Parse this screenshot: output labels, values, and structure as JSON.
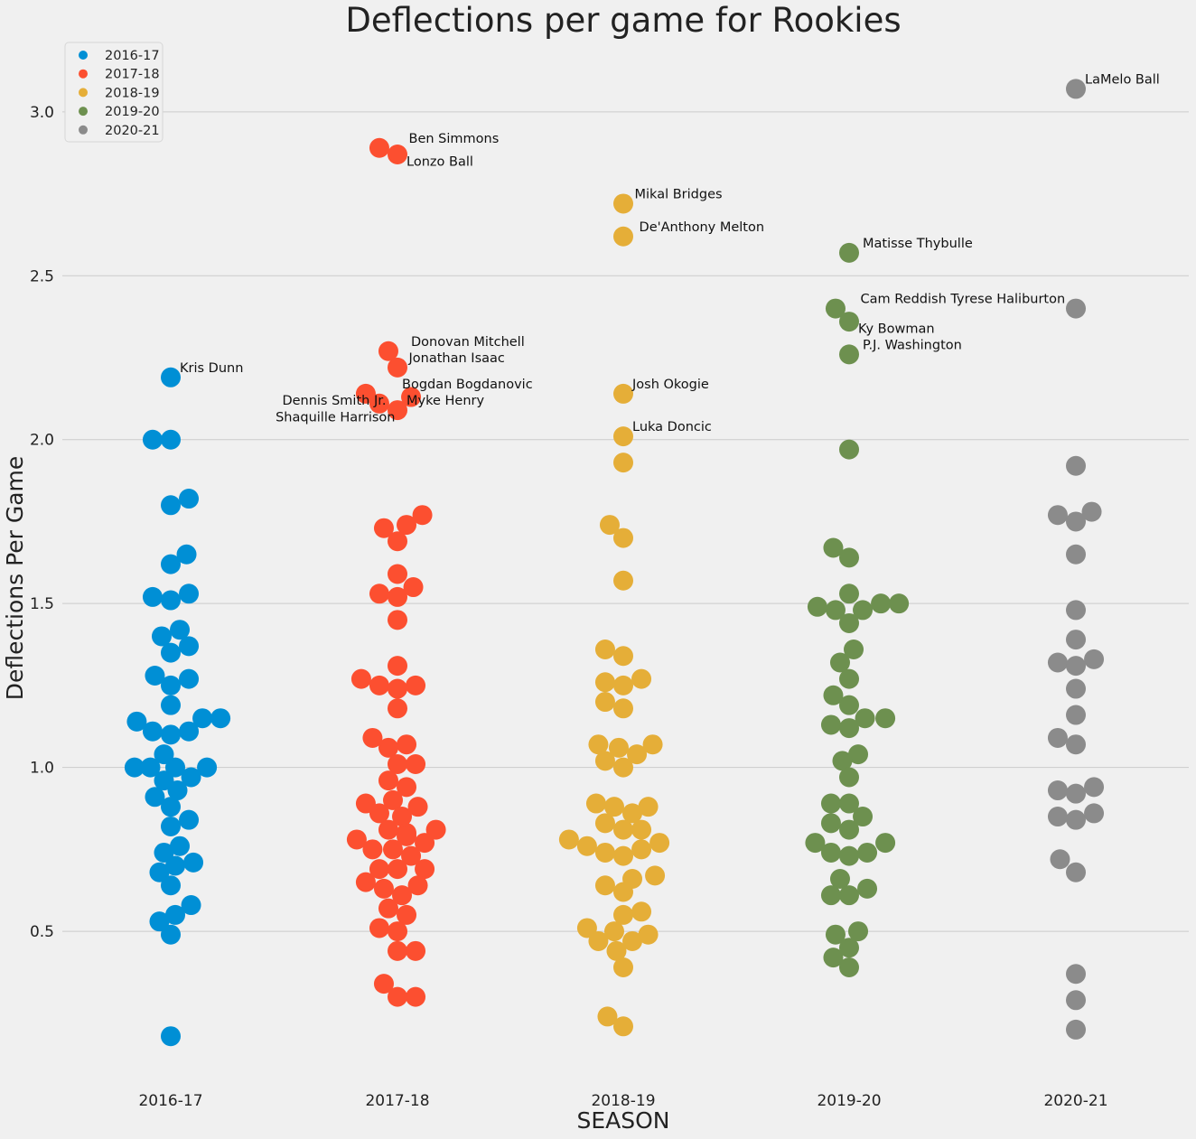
{
  "chart_data": {
    "type": "scatter",
    "title": "Deflections per game for Rookies",
    "xlabel": "SEASON",
    "ylabel": "Deflections Per Game",
    "ylim": [
      0.04,
      3.22
    ],
    "yticks": [
      0.5,
      1.0,
      1.5,
      2.0,
      2.5,
      3.0
    ],
    "ytick_labels": [
      "0.5",
      "1.0",
      "1.5",
      "2.0",
      "2.5",
      "3.0"
    ],
    "grid": "horizontal",
    "legend_position": "top-left",
    "categories": [
      "2016-17",
      "2017-18",
      "2018-19",
      "2019-20",
      "2020-21"
    ],
    "series": [
      {
        "name": "2016-17",
        "color": "#008fd5",
        "points": [
          {
            "x": -0.16,
            "y": 1.0
          },
          {
            "x": -0.09,
            "y": 1.0
          },
          {
            "x": 0.02,
            "y": 1.0
          },
          {
            "x": 0.16,
            "y": 1.0
          },
          {
            "x": -0.03,
            "y": 1.04
          },
          {
            "x": -0.03,
            "y": 0.96
          },
          {
            "x": 0.09,
            "y": 0.97
          },
          {
            "x": -0.07,
            "y": 0.91
          },
          {
            "x": 0.03,
            "y": 0.93
          },
          {
            "x": 0.0,
            "y": 0.88
          },
          {
            "x": 0.0,
            "y": 0.82
          },
          {
            "x": 0.08,
            "y": 0.84
          },
          {
            "x": -0.03,
            "y": 0.74
          },
          {
            "x": 0.04,
            "y": 0.76
          },
          {
            "x": -0.05,
            "y": 0.68
          },
          {
            "x": 0.02,
            "y": 0.7
          },
          {
            "x": 0.1,
            "y": 0.71
          },
          {
            "x": 0.0,
            "y": 0.64
          },
          {
            "x": -0.05,
            "y": 0.53
          },
          {
            "x": 0.02,
            "y": 0.55
          },
          {
            "x": 0.09,
            "y": 0.58
          },
          {
            "x": 0.0,
            "y": 0.49
          },
          {
            "x": 0.0,
            "y": 0.18
          },
          {
            "x": -0.15,
            "y": 1.14
          },
          {
            "x": -0.08,
            "y": 1.11
          },
          {
            "x": 0.0,
            "y": 1.1
          },
          {
            "x": 0.08,
            "y": 1.11
          },
          {
            "x": 0.14,
            "y": 1.15
          },
          {
            "x": 0.22,
            "y": 1.15
          },
          {
            "x": 0.0,
            "y": 1.19
          },
          {
            "x": -0.07,
            "y": 1.28
          },
          {
            "x": 0.0,
            "y": 1.25
          },
          {
            "x": 0.08,
            "y": 1.27
          },
          {
            "x": -0.04,
            "y": 1.4
          },
          {
            "x": 0.04,
            "y": 1.42
          },
          {
            "x": 0.0,
            "y": 1.35
          },
          {
            "x": 0.08,
            "y": 1.37
          },
          {
            "x": -0.08,
            "y": 1.52
          },
          {
            "x": 0.0,
            "y": 1.51
          },
          {
            "x": 0.08,
            "y": 1.53
          },
          {
            "x": 0.0,
            "y": 1.62
          },
          {
            "x": 0.07,
            "y": 1.65
          },
          {
            "x": 0.0,
            "y": 1.8
          },
          {
            "x": 0.08,
            "y": 1.82
          },
          {
            "x": -0.08,
            "y": 2.0
          },
          {
            "x": 0.0,
            "y": 2.0
          },
          {
            "x": 0.0,
            "y": 2.19
          }
        ],
        "annotations": [
          {
            "text": "Kris Dunn",
            "x": 0.04,
            "y": 2.22,
            "anchor": "start"
          }
        ]
      },
      {
        "name": "2017-18",
        "color": "#fc4f30",
        "points": [
          {
            "x": -0.08,
            "y": 2.89
          },
          {
            "x": 0.0,
            "y": 2.87
          },
          {
            "x": -0.04,
            "y": 2.27
          },
          {
            "x": 0.0,
            "y": 2.22
          },
          {
            "x": -0.14,
            "y": 2.14
          },
          {
            "x": -0.08,
            "y": 2.11
          },
          {
            "x": 0.0,
            "y": 2.09
          },
          {
            "x": 0.06,
            "y": 2.13
          },
          {
            "x": -0.06,
            "y": 1.73
          },
          {
            "x": 0.04,
            "y": 1.74
          },
          {
            "x": 0.11,
            "y": 1.77
          },
          {
            "x": 0.0,
            "y": 1.69
          },
          {
            "x": 0.0,
            "y": 1.59
          },
          {
            "x": -0.08,
            "y": 1.53
          },
          {
            "x": 0.0,
            "y": 1.52
          },
          {
            "x": 0.07,
            "y": 1.55
          },
          {
            "x": 0.0,
            "y": 1.45
          },
          {
            "x": 0.0,
            "y": 1.31
          },
          {
            "x": -0.16,
            "y": 1.27
          },
          {
            "x": -0.08,
            "y": 1.25
          },
          {
            "x": 0.0,
            "y": 1.24
          },
          {
            "x": 0.08,
            "y": 1.25
          },
          {
            "x": 0.0,
            "y": 1.18
          },
          {
            "x": -0.11,
            "y": 1.09
          },
          {
            "x": -0.04,
            "y": 1.06
          },
          {
            "x": 0.04,
            "y": 1.07
          },
          {
            "x": 0.0,
            "y": 1.01
          },
          {
            "x": 0.08,
            "y": 1.01
          },
          {
            "x": -0.04,
            "y": 0.96
          },
          {
            "x": 0.04,
            "y": 0.94
          },
          {
            "x": -0.14,
            "y": 0.89
          },
          {
            "x": -0.02,
            "y": 0.9
          },
          {
            "x": 0.09,
            "y": 0.88
          },
          {
            "x": -0.08,
            "y": 0.86
          },
          {
            "x": 0.02,
            "y": 0.85
          },
          {
            "x": -0.04,
            "y": 0.81
          },
          {
            "x": 0.04,
            "y": 0.8
          },
          {
            "x": 0.17,
            "y": 0.81
          },
          {
            "x": -0.18,
            "y": 0.78
          },
          {
            "x": -0.11,
            "y": 0.75
          },
          {
            "x": -0.02,
            "y": 0.75
          },
          {
            "x": 0.04,
            "y": 0.79
          },
          {
            "x": 0.12,
            "y": 0.77
          },
          {
            "x": 0.06,
            "y": 0.73
          },
          {
            "x": -0.08,
            "y": 0.69
          },
          {
            "x": 0.0,
            "y": 0.69
          },
          {
            "x": 0.12,
            "y": 0.69
          },
          {
            "x": -0.14,
            "y": 0.65
          },
          {
            "x": -0.06,
            "y": 0.63
          },
          {
            "x": 0.02,
            "y": 0.61
          },
          {
            "x": 0.09,
            "y": 0.64
          },
          {
            "x": -0.04,
            "y": 0.57
          },
          {
            "x": 0.04,
            "y": 0.55
          },
          {
            "x": -0.08,
            "y": 0.51
          },
          {
            "x": 0.0,
            "y": 0.5
          },
          {
            "x": 0.0,
            "y": 0.44
          },
          {
            "x": 0.08,
            "y": 0.44
          },
          {
            "x": -0.06,
            "y": 0.34
          },
          {
            "x": 0.0,
            "y": 0.3
          },
          {
            "x": 0.08,
            "y": 0.3
          }
        ],
        "annotations": [
          {
            "text": "Ben Simmons",
            "x": 0.05,
            "y": 2.92,
            "anchor": "start"
          },
          {
            "text": "Lonzo Ball",
            "x": 0.04,
            "y": 2.85,
            "anchor": "start"
          },
          {
            "text": "Donovan Mitchell",
            "x": 0.06,
            "y": 2.3,
            "anchor": "start"
          },
          {
            "text": "Jonathan Isaac",
            "x": 0.05,
            "y": 2.25,
            "anchor": "start"
          },
          {
            "text": "Bogdan Bogdanovic",
            "x": 0.02,
            "y": 2.17,
            "anchor": "start"
          },
          {
            "text": "Myke Henry",
            "x": 0.04,
            "y": 2.12,
            "anchor": "start"
          },
          {
            "text": "Dennis Smith Jr.",
            "x": -0.05,
            "y": 2.12,
            "anchor": "end"
          },
          {
            "text": "Shaquille Harrison",
            "x": -0.01,
            "y": 2.07,
            "anchor": "end"
          }
        ]
      },
      {
        "name": "2018-19",
        "color": "#e5ae38",
        "points": [
          {
            "x": 0.0,
            "y": 2.72
          },
          {
            "x": 0.0,
            "y": 2.62
          },
          {
            "x": 0.0,
            "y": 2.14
          },
          {
            "x": 0.0,
            "y": 2.01
          },
          {
            "x": 0.0,
            "y": 1.93
          },
          {
            "x": -0.06,
            "y": 1.74
          },
          {
            "x": 0.0,
            "y": 1.7
          },
          {
            "x": 0.0,
            "y": 1.57
          },
          {
            "x": -0.08,
            "y": 1.36
          },
          {
            "x": 0.0,
            "y": 1.34
          },
          {
            "x": -0.08,
            "y": 1.26
          },
          {
            "x": 0.0,
            "y": 1.25
          },
          {
            "x": 0.08,
            "y": 1.27
          },
          {
            "x": -0.08,
            "y": 1.2
          },
          {
            "x": 0.0,
            "y": 1.18
          },
          {
            "x": -0.11,
            "y": 1.07
          },
          {
            "x": -0.02,
            "y": 1.06
          },
          {
            "x": 0.06,
            "y": 1.04
          },
          {
            "x": 0.13,
            "y": 1.07
          },
          {
            "x": -0.08,
            "y": 1.02
          },
          {
            "x": 0.0,
            "y": 1.0
          },
          {
            "x": -0.12,
            "y": 0.89
          },
          {
            "x": -0.04,
            "y": 0.88
          },
          {
            "x": 0.04,
            "y": 0.86
          },
          {
            "x": 0.11,
            "y": 0.88
          },
          {
            "x": -0.08,
            "y": 0.83
          },
          {
            "x": 0.0,
            "y": 0.81
          },
          {
            "x": 0.08,
            "y": 0.81
          },
          {
            "x": -0.24,
            "y": 0.78
          },
          {
            "x": -0.16,
            "y": 0.76
          },
          {
            "x": -0.08,
            "y": 0.74
          },
          {
            "x": 0.0,
            "y": 0.73
          },
          {
            "x": 0.08,
            "y": 0.75
          },
          {
            "x": 0.16,
            "y": 0.77
          },
          {
            "x": 0.04,
            "y": 0.66
          },
          {
            "x": 0.14,
            "y": 0.67
          },
          {
            "x": -0.08,
            "y": 0.64
          },
          {
            "x": 0.0,
            "y": 0.62
          },
          {
            "x": 0.08,
            "y": 0.56
          },
          {
            "x": 0.0,
            "y": 0.55
          },
          {
            "x": -0.16,
            "y": 0.51
          },
          {
            "x": -0.04,
            "y": 0.5
          },
          {
            "x": 0.11,
            "y": 0.49
          },
          {
            "x": -0.11,
            "y": 0.47
          },
          {
            "x": 0.04,
            "y": 0.47
          },
          {
            "x": -0.03,
            "y": 0.44
          },
          {
            "x": 0.0,
            "y": 0.39
          },
          {
            "x": -0.07,
            "y": 0.24
          },
          {
            "x": 0.0,
            "y": 0.21
          }
        ],
        "annotations": [
          {
            "text": "Mikal Bridges",
            "x": 0.05,
            "y": 2.75,
            "anchor": "start"
          },
          {
            "text": "De'Anthony Melton",
            "x": 0.07,
            "y": 2.65,
            "anchor": "start"
          },
          {
            "text": "Josh Okogie",
            "x": 0.04,
            "y": 2.17,
            "anchor": "start"
          },
          {
            "text": "Luka Doncic",
            "x": 0.04,
            "y": 2.04,
            "anchor": "start"
          }
        ]
      },
      {
        "name": "2019-20",
        "color": "#6d904f",
        "points": [
          {
            "x": 0.0,
            "y": 2.57
          },
          {
            "x": -0.06,
            "y": 2.4
          },
          {
            "x": 0.0,
            "y": 2.36
          },
          {
            "x": 0.0,
            "y": 2.26
          },
          {
            "x": 0.0,
            "y": 1.97
          },
          {
            "x": -0.07,
            "y": 1.67
          },
          {
            "x": 0.0,
            "y": 1.64
          },
          {
            "x": 0.0,
            "y": 1.53
          },
          {
            "x": -0.14,
            "y": 1.49
          },
          {
            "x": -0.06,
            "y": 1.48
          },
          {
            "x": 0.06,
            "y": 1.48
          },
          {
            "x": 0.14,
            "y": 1.5
          },
          {
            "x": 0.22,
            "y": 1.5
          },
          {
            "x": 0.0,
            "y": 1.44
          },
          {
            "x": 0.02,
            "y": 1.36
          },
          {
            "x": -0.04,
            "y": 1.32
          },
          {
            "x": 0.0,
            "y": 1.27
          },
          {
            "x": -0.07,
            "y": 1.22
          },
          {
            "x": 0.0,
            "y": 1.19
          },
          {
            "x": -0.08,
            "y": 1.13
          },
          {
            "x": 0.0,
            "y": 1.12
          },
          {
            "x": 0.07,
            "y": 1.15
          },
          {
            "x": 0.16,
            "y": 1.15
          },
          {
            "x": 0.04,
            "y": 1.04
          },
          {
            "x": -0.03,
            "y": 1.02
          },
          {
            "x": 0.0,
            "y": 0.97
          },
          {
            "x": -0.08,
            "y": 0.89
          },
          {
            "x": 0.0,
            "y": 0.89
          },
          {
            "x": -0.08,
            "y": 0.83
          },
          {
            "x": 0.06,
            "y": 0.85
          },
          {
            "x": 0.0,
            "y": 0.81
          },
          {
            "x": -0.15,
            "y": 0.77
          },
          {
            "x": -0.08,
            "y": 0.74
          },
          {
            "x": 0.0,
            "y": 0.73
          },
          {
            "x": 0.08,
            "y": 0.74
          },
          {
            "x": 0.16,
            "y": 0.77
          },
          {
            "x": -0.04,
            "y": 0.66
          },
          {
            "x": -0.08,
            "y": 0.61
          },
          {
            "x": 0.0,
            "y": 0.61
          },
          {
            "x": 0.08,
            "y": 0.63
          },
          {
            "x": -0.06,
            "y": 0.49
          },
          {
            "x": 0.04,
            "y": 0.5
          },
          {
            "x": 0.0,
            "y": 0.45
          },
          {
            "x": -0.07,
            "y": 0.42
          },
          {
            "x": 0.0,
            "y": 0.39
          }
        ],
        "annotations": [
          {
            "text": "Matisse Thybulle",
            "x": 0.06,
            "y": 2.6,
            "anchor": "start"
          },
          {
            "text": "Cam Reddish Tyrese Haliburton",
            "x": 0.05,
            "y": 2.43,
            "anchor": "start"
          },
          {
            "text": "Ky Bowman",
            "x": 0.04,
            "y": 2.34,
            "anchor": "start"
          },
          {
            "text": "P.J. Washington",
            "x": 0.06,
            "y": 2.29,
            "anchor": "start"
          }
        ]
      },
      {
        "name": "2020-21",
        "color": "#8b8b8b",
        "points": [
          {
            "x": 0.0,
            "y": 3.07
          },
          {
            "x": 0.0,
            "y": 2.4
          },
          {
            "x": 0.0,
            "y": 1.92
          },
          {
            "x": -0.08,
            "y": 1.77
          },
          {
            "x": 0.0,
            "y": 1.75
          },
          {
            "x": 0.07,
            "y": 1.78
          },
          {
            "x": 0.0,
            "y": 1.65
          },
          {
            "x": 0.0,
            "y": 1.48
          },
          {
            "x": 0.0,
            "y": 1.39
          },
          {
            "x": -0.08,
            "y": 1.32
          },
          {
            "x": 0.0,
            "y": 1.31
          },
          {
            "x": 0.08,
            "y": 1.33
          },
          {
            "x": 0.0,
            "y": 1.24
          },
          {
            "x": 0.0,
            "y": 1.16
          },
          {
            "x": -0.08,
            "y": 1.09
          },
          {
            "x": 0.0,
            "y": 1.07
          },
          {
            "x": -0.08,
            "y": 0.93
          },
          {
            "x": 0.0,
            "y": 0.92
          },
          {
            "x": 0.08,
            "y": 0.94
          },
          {
            "x": -0.08,
            "y": 0.85
          },
          {
            "x": 0.0,
            "y": 0.84
          },
          {
            "x": 0.08,
            "y": 0.86
          },
          {
            "x": -0.07,
            "y": 0.72
          },
          {
            "x": 0.0,
            "y": 0.68
          },
          {
            "x": 0.0,
            "y": 0.37
          },
          {
            "x": 0.0,
            "y": 0.29
          },
          {
            "x": 0.0,
            "y": 0.2
          }
        ],
        "annotations": [
          {
            "text": "LaMelo Ball",
            "x": 0.04,
            "y": 3.1,
            "anchor": "start"
          }
        ]
      }
    ]
  }
}
